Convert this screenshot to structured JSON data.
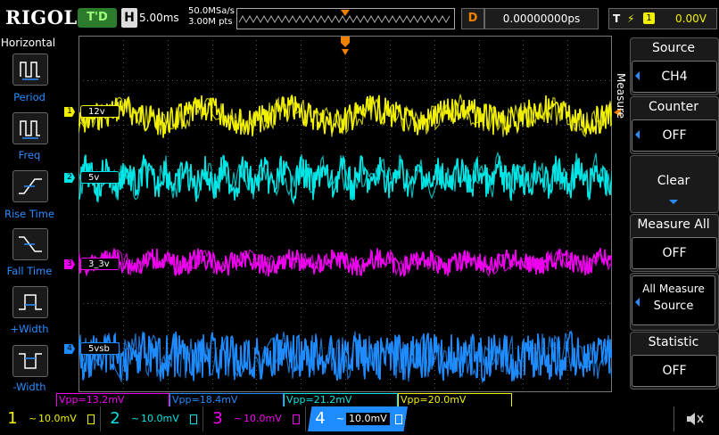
{
  "header": {
    "brand": "RIGOL",
    "trigger_status": "T'D",
    "horizontal_label": "H",
    "horizontal_scale": "5.00ms",
    "sample_rate": "50.0MSa/s",
    "memory_depth": "3.00M pts",
    "delay_label": "D",
    "delay_value": "0.00000000ps",
    "trigger_label": "T",
    "trigger_source": "1",
    "trigger_level": "0.00V"
  },
  "left_panel": {
    "title": "Horizontal",
    "items": [
      {
        "label": "Period",
        "icon": "period-icon"
      },
      {
        "label": "Freq",
        "icon": "freq-icon"
      },
      {
        "label": "Rise Time",
        "icon": "rise-time-icon"
      },
      {
        "label": "Fall Time",
        "icon": "fall-time-icon"
      },
      {
        "label": "+Width",
        "icon": "positive-width-icon"
      },
      {
        "label": "-Width",
        "icon": "negative-width-icon"
      }
    ]
  },
  "traces": [
    {
      "marker": "1",
      "label": "12v",
      "color": "#f0f000"
    },
    {
      "marker": "2",
      "label": "5v",
      "color": "#00e5e5"
    },
    {
      "marker": "3",
      "label": "3_3v",
      "color": "#f000f0"
    },
    {
      "marker": "4",
      "label": "5vsb",
      "color": "#1e8cff"
    }
  ],
  "right_panel": {
    "side_label": "Measure",
    "source_title": "Source",
    "source_value": "CH4",
    "counter_title": "Counter",
    "counter_value": "OFF",
    "clear_label": "Clear",
    "measure_all_title": "Measure All",
    "measure_all_value": "OFF",
    "all_measure_source_line1": "All Measure",
    "all_measure_source_line2": "Source",
    "statistic_title": "Statistic",
    "statistic_value": "OFF"
  },
  "measurements": [
    {
      "text": "Vpp=13.2mV",
      "color": "#f000f0"
    },
    {
      "text": "Vpp=18.4mV",
      "color": "#1e8cff"
    },
    {
      "text": "Vpp=21.2mV",
      "color": "#00e5e5"
    },
    {
      "text": "Vpp=20.0mV",
      "color": "#f0f000"
    }
  ],
  "channels": [
    {
      "num": "1",
      "scale": "10.0mV",
      "color": "#f0f000"
    },
    {
      "num": "2",
      "scale": "10.0mV",
      "color": "#00e5e5"
    },
    {
      "num": "3",
      "scale": "10.0mV",
      "color": "#f000f0"
    },
    {
      "num": "4",
      "scale": "10.0mV",
      "color": "#1e8cff"
    }
  ],
  "icons": {
    "sound": "speaker-icon"
  }
}
